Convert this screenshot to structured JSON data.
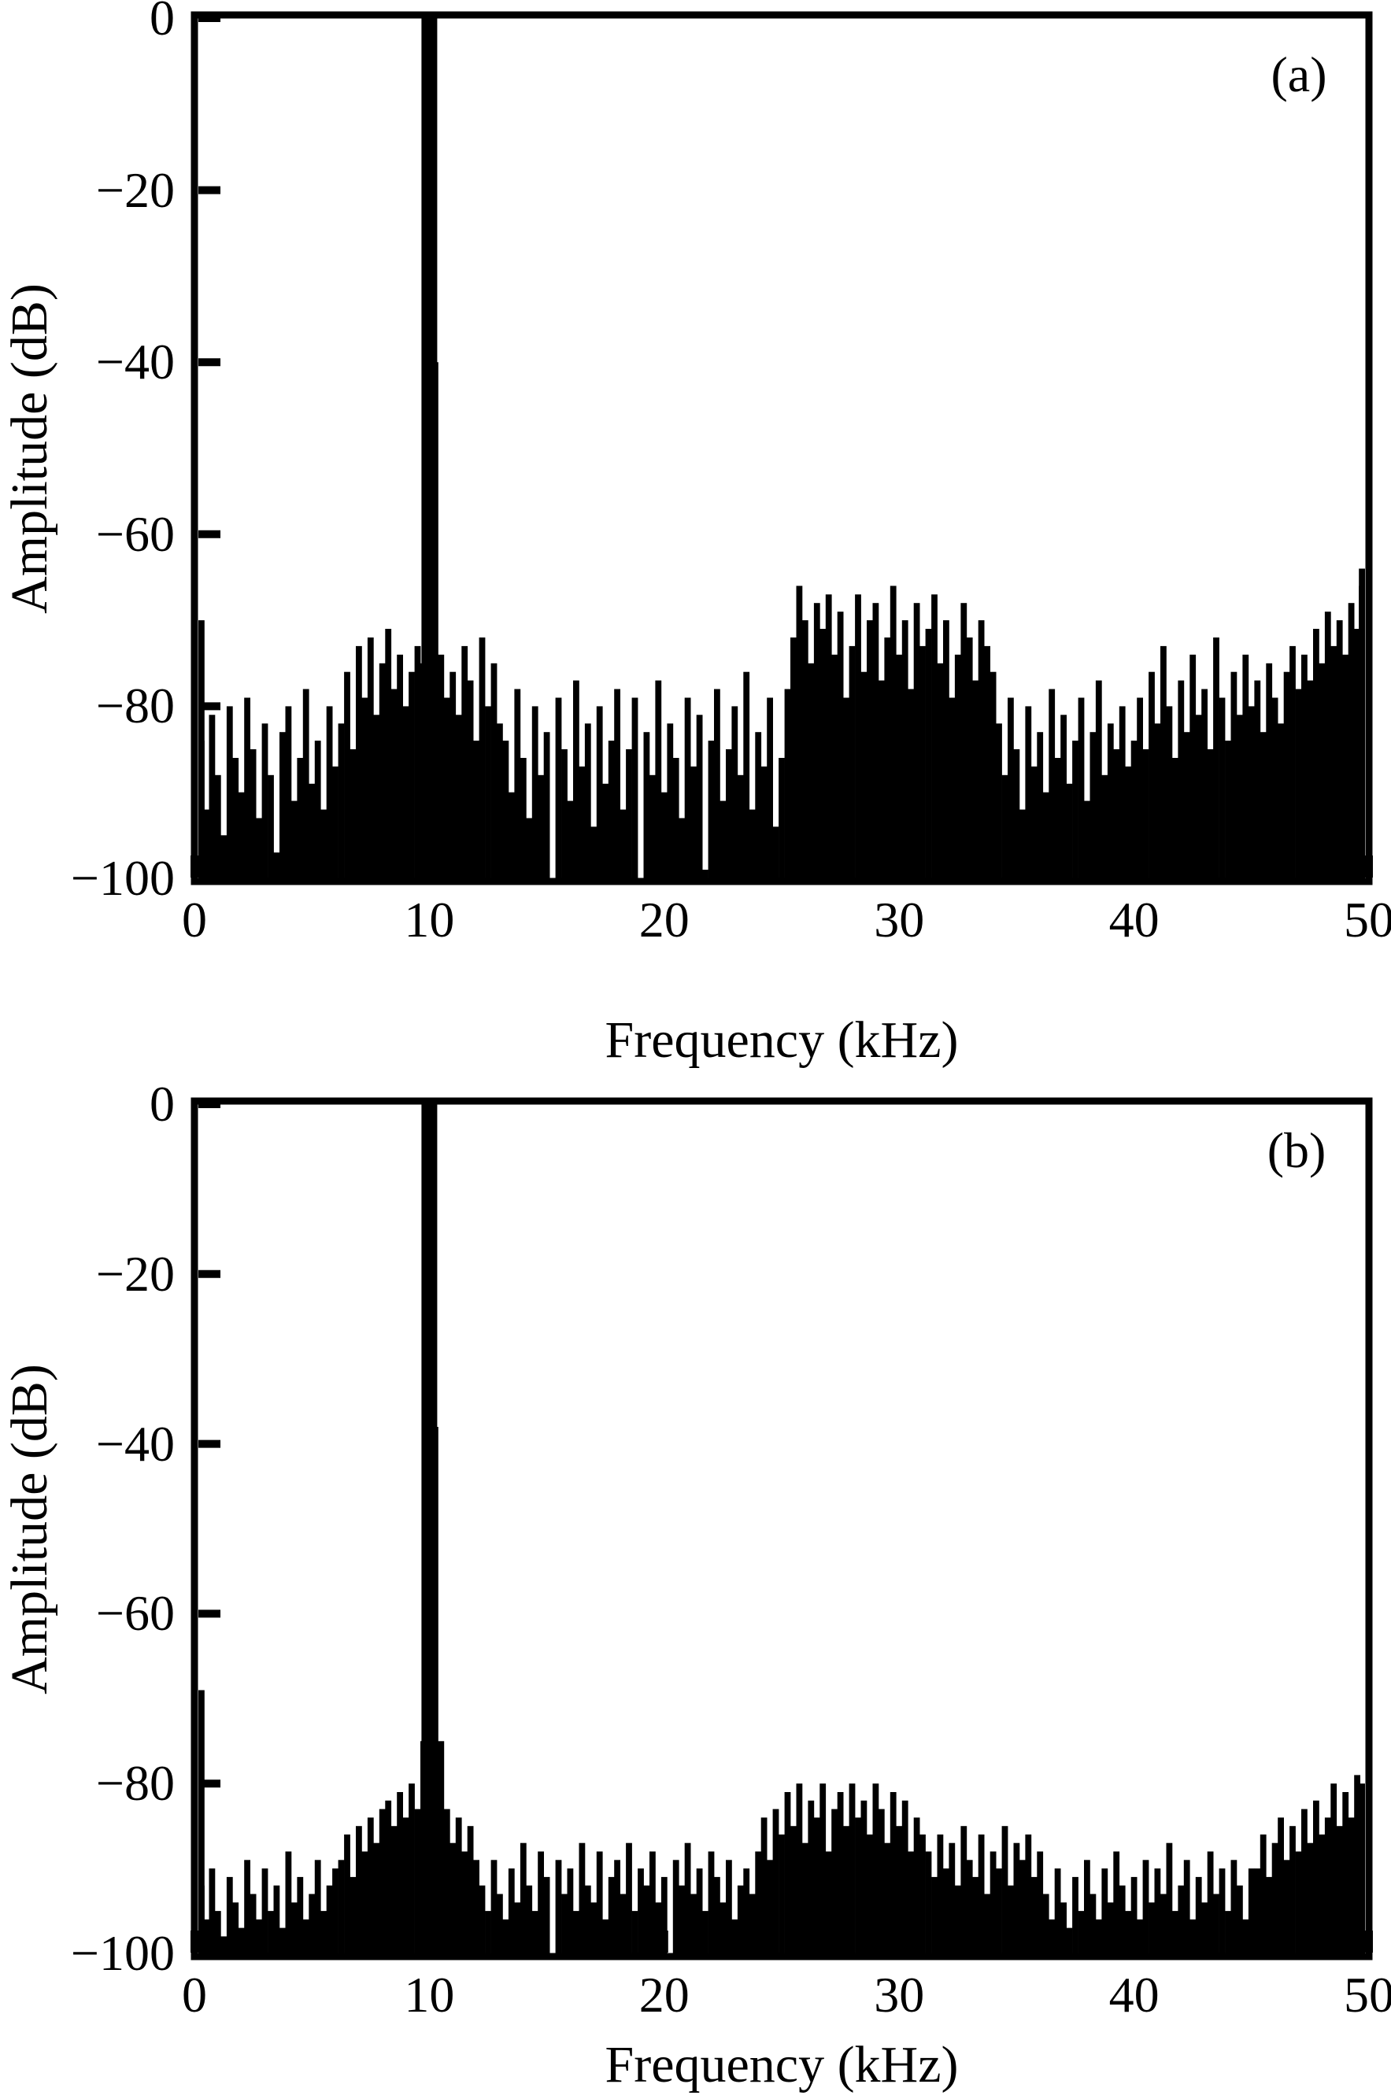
{
  "figure": {
    "background_color": "#ffffff",
    "ink_color": "#000000"
  },
  "chart_data": [
    {
      "id": "a",
      "type": "bar",
      "panel_label": "(a)",
      "title": "",
      "xlabel": "Frequency (kHz)",
      "ylabel": "Amplitude (dB)",
      "xlim": [
        0,
        50
      ],
      "ylim": [
        -100,
        0
      ],
      "grid": false,
      "legend": "none",
      "x_ticks": [
        0,
        10,
        20,
        30,
        40,
        50
      ],
      "x_tick_labels": [
        "0",
        "10",
        "20",
        "30",
        "40",
        "50"
      ],
      "y_ticks": [
        0,
        -20,
        -40,
        -60,
        -80,
        -100
      ],
      "y_tick_labels": [
        "0",
        "−20",
        "−40",
        "−60",
        "−80",
        "−100"
      ],
      "peak": {
        "freq_khz": 10,
        "amplitude_db": 0
      },
      "noise_floor_db": -85,
      "f_start_khz": 0,
      "bin_khz": 0.25,
      "values_db": [
        -70,
        -84,
        -92,
        -81,
        -88,
        -95,
        -80,
        -86,
        -90,
        -79,
        -85,
        -93,
        -82,
        -88,
        -97,
        -83,
        -80,
        -91,
        -86,
        -78,
        -89,
        -84,
        -92,
        -80,
        -87,
        -82,
        -76,
        -85,
        -73,
        -79,
        -72,
        -81,
        -75,
        -71,
        -78,
        -74,
        -80,
        -76,
        -73,
        -75,
        0,
        -40,
        -74,
        -79,
        -76,
        -81,
        -73,
        -77,
        -84,
        -72,
        -80,
        -75,
        -82,
        -84,
        -90,
        -78,
        -86,
        -93,
        -80,
        -88,
        -83,
        -100,
        -79,
        -85,
        -91,
        -77,
        -87,
        -82,
        -94,
        -80,
        -89,
        -84,
        -78,
        -92,
        -85,
        -79,
        -100,
        -83,
        -88,
        -77,
        -90,
        -82,
        -86,
        -93,
        -79,
        -87,
        -81,
        -99,
        -84,
        -78,
        -91,
        -85,
        -80,
        -88,
        -76,
        -92,
        -83,
        -87,
        -79,
        -94,
        -86,
        -78,
        -72,
        -66,
        -70,
        -75,
        -68,
        -71,
        -67,
        -74,
        -69,
        -79,
        -73,
        -67,
        -76,
        -70,
        -68,
        -77,
        -72,
        -66,
        -74,
        -70,
        -78,
        -68,
        -73,
        -71,
        -67,
        -75,
        -70,
        -79,
        -74,
        -68,
        -72,
        -77,
        -70,
        -73,
        -76,
        -82,
        -88,
        -79,
        -85,
        -92,
        -80,
        -87,
        -83,
        -90,
        -78,
        -86,
        -81,
        -89,
        -84,
        -79,
        -91,
        -83,
        -77,
        -88,
        -82,
        -85,
        -80,
        -87,
        -84,
        -79,
        -85,
        -76,
        -82,
        -73,
        -80,
        -86,
        -77,
        -83,
        -74,
        -81,
        -78,
        -85,
        -72,
        -79,
        -84,
        -76,
        -81,
        -74,
        -80,
        -77,
        -83,
        -75,
        -79,
        -82,
        -76,
        -73,
        -78,
        -74,
        -77,
        -71,
        -75,
        -69,
        -73,
        -70,
        -74,
        -68,
        -71,
        -66,
        -64
      ]
    },
    {
      "id": "b",
      "type": "bar",
      "panel_label": "(b)",
      "title": "",
      "xlabel": "Frequency (kHz)",
      "ylabel": "Amplitude (dB)",
      "xlim": [
        0,
        50
      ],
      "ylim": [
        -100,
        0
      ],
      "grid": false,
      "legend": "none",
      "x_ticks": [
        0,
        10,
        20,
        30,
        40,
        50
      ],
      "x_tick_labels": [
        "0",
        "10",
        "20",
        "30",
        "40",
        "50"
      ],
      "y_ticks": [
        0,
        -20,
        -40,
        -60,
        -80,
        -100
      ],
      "y_tick_labels": [
        "0",
        "−20",
        "−40",
        "−60",
        "−80",
        "−100"
      ],
      "peak": {
        "freq_khz": 10,
        "amplitude_db": 0
      },
      "noise_floor_db": -93,
      "f_start_khz": 0,
      "bin_khz": 0.25,
      "values_db": [
        -69,
        -92,
        -96,
        -90,
        -95,
        -98,
        -91,
        -94,
        -97,
        -89,
        -93,
        -96,
        -90,
        -95,
        -92,
        -97,
        -88,
        -94,
        -91,
        -96,
        -93,
        -89,
        -95,
        -92,
        -90,
        -89,
        -86,
        -91,
        -85,
        -88,
        -84,
        -87,
        -83,
        -82,
        -85,
        -81,
        -84,
        -80,
        -83,
        -75,
        0,
        -38,
        -75,
        -83,
        -87,
        -84,
        -88,
        -85,
        -89,
        -92,
        -95,
        -89,
        -93,
        -96,
        -90,
        -94,
        -87,
        -92,
        -95,
        -88,
        -91,
        -100,
        -89,
        -93,
        -90,
        -95,
        -87,
        -92,
        -94,
        -88,
        -96,
        -91,
        -89,
        -93,
        -87,
        -95,
        -90,
        -92,
        -88,
        -94,
        -91,
        -100,
        -89,
        -92,
        -87,
        -93,
        -90,
        -95,
        -88,
        -91,
        -94,
        -89,
        -96,
        -92,
        -90,
        -93,
        -88,
        -84,
        -89,
        -83,
        -86,
        -81,
        -85,
        -80,
        -87,
        -82,
        -84,
        -80,
        -88,
        -83,
        -81,
        -85,
        -80,
        -84,
        -82,
        -86,
        -80,
        -83,
        -87,
        -81,
        -85,
        -82,
        -88,
        -84,
        -86,
        -88,
        -91,
        -86,
        -90,
        -87,
        -92,
        -85,
        -89,
        -91,
        -86,
        -93,
        -88,
        -90,
        -85,
        -92,
        -87,
        -89,
        -86,
        -91,
        -88,
        -93,
        -96,
        -90,
        -94,
        -97,
        -91,
        -95,
        -89,
        -93,
        -96,
        -90,
        -94,
        -88,
        -92,
        -95,
        -91,
        -96,
        -89,
        -94,
        -90,
        -93,
        -87,
        -95,
        -92,
        -89,
        -96,
        -91,
        -94,
        -88,
        -93,
        -90,
        -95,
        -89,
        -92,
        -96,
        -90,
        -90,
        -86,
        -91,
        -87,
        -84,
        -89,
        -85,
        -88,
        -83,
        -87,
        -82,
        -86,
        -84,
        -80,
        -85,
        -81,
        -84,
        -79,
        -82,
        -80
      ]
    }
  ]
}
